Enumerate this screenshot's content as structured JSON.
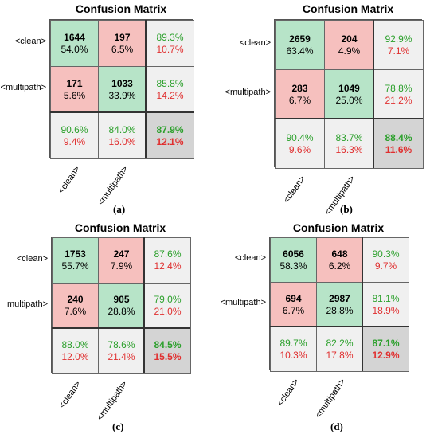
{
  "chart_data": [
    {
      "type": "table",
      "title": "Confusion Matrix",
      "caption": "(a)",
      "row_labels": [
        "<clean>",
        "<multipath>"
      ],
      "col_labels": [
        "<clean>",
        "<multipath>"
      ],
      "counts": [
        [
          1644,
          197
        ],
        [
          171,
          1033
        ]
      ],
      "cell_percents": [
        [
          "54.0%",
          "6.5%"
        ],
        [
          "5.6%",
          "33.9%"
        ]
      ],
      "row_summary": [
        [
          "89.3%",
          "10.7%"
        ],
        [
          "85.8%",
          "14.2%"
        ]
      ],
      "col_summary": [
        [
          "90.6%",
          "9.4%"
        ],
        [
          "84.0%",
          "16.0%"
        ]
      ],
      "overall": [
        "87.9%",
        "12.1%"
      ]
    },
    {
      "type": "table",
      "title": "Confusion Matrix",
      "caption": "(b)",
      "row_labels": [
        "<clean>",
        "<multipath>"
      ],
      "col_labels": [
        "<clean>",
        "<multipath>"
      ],
      "counts": [
        [
          2659,
          204
        ],
        [
          283,
          1049
        ]
      ],
      "cell_percents": [
        [
          "63.4%",
          "4.9%"
        ],
        [
          "6.7%",
          "25.0%"
        ]
      ],
      "row_summary": [
        [
          "92.9%",
          "7.1%"
        ],
        [
          "78.8%",
          "21.2%"
        ]
      ],
      "col_summary": [
        [
          "90.4%",
          "9.6%"
        ],
        [
          "83.7%",
          "16.3%"
        ]
      ],
      "overall": [
        "88.4%",
        "11.6%"
      ]
    },
    {
      "type": "table",
      "title": "Confusion Matrix",
      "caption": "(c)",
      "row_labels": [
        "<clean>",
        "multipath>"
      ],
      "col_labels": [
        "<clean>",
        "<multipath>"
      ],
      "counts": [
        [
          1753,
          247
        ],
        [
          240,
          905
        ]
      ],
      "cell_percents": [
        [
          "55.7%",
          "7.9%"
        ],
        [
          "7.6%",
          "28.8%"
        ]
      ],
      "row_summary": [
        [
          "87.6%",
          "12.4%"
        ],
        [
          "79.0%",
          "21.0%"
        ]
      ],
      "col_summary": [
        [
          "88.0%",
          "12.0%"
        ],
        [
          "78.6%",
          "21.4%"
        ]
      ],
      "overall": [
        "84.5%",
        "15.5%"
      ]
    },
    {
      "type": "table",
      "title": "Confusion Matrix",
      "caption": "(d)",
      "row_labels": [
        "<clean>",
        "<multipath>"
      ],
      "col_labels": [
        "<clean>",
        "<multipath>"
      ],
      "counts": [
        [
          6056,
          648
        ],
        [
          694,
          2987
        ]
      ],
      "cell_percents": [
        [
          "58.3%",
          "6.2%"
        ],
        [
          "6.7%",
          "28.8%"
        ]
      ],
      "row_summary": [
        [
          "90.3%",
          "9.7%"
        ],
        [
          "81.1%",
          "18.9%"
        ]
      ],
      "col_summary": [
        [
          "89.7%",
          "10.3%"
        ],
        [
          "82.2%",
          "17.8%"
        ]
      ],
      "overall": [
        "87.1%",
        "12.9%"
      ]
    }
  ]
}
